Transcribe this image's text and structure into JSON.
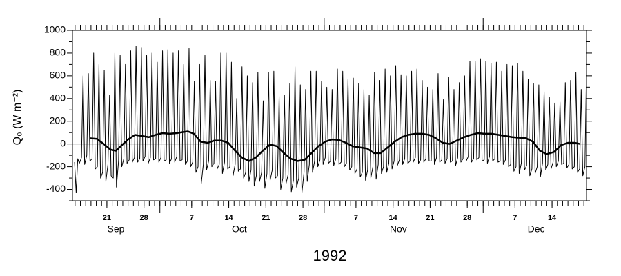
{
  "chart_data": {
    "type": "line",
    "xlabel": "1992",
    "ylabel": "Q₀ (W m⁻²)",
    "xlim": [
      258.5,
      355.5
    ],
    "ylim": [
      -500,
      1000
    ],
    "yticks": [
      -400,
      -200,
      0,
      200,
      400,
      600,
      800,
      1000
    ],
    "yminor_ticks": [
      -500,
      -300,
      -100,
      100,
      300,
      500,
      700,
      900
    ],
    "xticks": [
      {
        "value": 265,
        "label": "21"
      },
      {
        "value": 272,
        "label": "28"
      },
      {
        "value": 281,
        "label": "7"
      },
      {
        "value": 288,
        "label": "14"
      },
      {
        "value": 295,
        "label": "21"
      },
      {
        "value": 302,
        "label": "28"
      },
      {
        "value": 312,
        "label": "7"
      },
      {
        "value": 319,
        "label": "14"
      },
      {
        "value": 326,
        "label": "21"
      },
      {
        "value": 333,
        "label": "28"
      },
      {
        "value": 342,
        "label": "7"
      },
      {
        "value": 349,
        "label": "14"
      }
    ],
    "xminor_step": 1,
    "xmajor_ticks": [
      275,
      306,
      336
    ],
    "month_labels": [
      {
        "value": 266.7,
        "label": "Sep"
      },
      {
        "value": 290,
        "label": "Oct"
      },
      {
        "value": 320,
        "label": "Nov"
      },
      {
        "value": 346,
        "label": "Dec"
      }
    ],
    "hline": 0,
    "series": [
      {
        "color": "#000000",
        "width": 1,
        "x": [
          258.9,
          259.2,
          259.5,
          259.8,
          260.2,
          260.5,
          260.8,
          261.2,
          261.5,
          261.8,
          262.2,
          262.5,
          262.8,
          263.2,
          263.5,
          263.8,
          264.2,
          264.5,
          264.8,
          265.2,
          265.5,
          265.8,
          266.2,
          266.5,
          266.8,
          267.2,
          267.5,
          267.8,
          268.2,
          268.5,
          268.8,
          269.2,
          269.5,
          269.8,
          270.2,
          270.5,
          270.8,
          271.2,
          271.5,
          271.8,
          272.2,
          272.5,
          272.8,
          273.2,
          273.5,
          273.8,
          274.2,
          274.5,
          274.8,
          275.2,
          275.5,
          275.8,
          276.2,
          276.5,
          276.8,
          277.2,
          277.5,
          277.8,
          278.2,
          278.5,
          278.8,
          279.2,
          279.5,
          279.8,
          280.2,
          280.5,
          280.8,
          281.2,
          281.5,
          281.8,
          282.2,
          282.5,
          282.8,
          283.2,
          283.5,
          283.8,
          284.2,
          284.5,
          284.8,
          285.2,
          285.5,
          285.8,
          286.2,
          286.5,
          286.8,
          287.2,
          287.5,
          287.8,
          288.2,
          288.5,
          288.8,
          289.2,
          289.5,
          289.8,
          290.2,
          290.5,
          290.8,
          291.2,
          291.5,
          291.8,
          292.2,
          292.5,
          292.8,
          293.2,
          293.5,
          293.8,
          294.2,
          294.5,
          294.8,
          295.2,
          295.5,
          295.8,
          296.2,
          296.5,
          296.8,
          297.2,
          297.5,
          297.8,
          298.2,
          298.5,
          298.8,
          299.2,
          299.5,
          299.8,
          300.2,
          300.5,
          300.8,
          301.2,
          301.5,
          301.8,
          302.2,
          302.5,
          302.8,
          303.2,
          303.5,
          303.8,
          304.2,
          304.5,
          304.8,
          305.2,
          305.5,
          305.8,
          306.2,
          306.5,
          306.8,
          307.2,
          307.5,
          307.8,
          308.2,
          308.5,
          308.8,
          309.2,
          309.5,
          309.8,
          310.2,
          310.5,
          310.8,
          311.2,
          311.5,
          311.8,
          312.2,
          312.5,
          312.8,
          313.2,
          313.5,
          313.8,
          314.2,
          314.5,
          314.8,
          315.2,
          315.5,
          315.8,
          316.2,
          316.5,
          316.8,
          317.2,
          317.5,
          317.8,
          318.2,
          318.5,
          318.8,
          319.2,
          319.5,
          319.8,
          320.2,
          320.5,
          320.8,
          321.2,
          321.5,
          321.8,
          322.2,
          322.5,
          322.8,
          323.2,
          323.5,
          323.8,
          324.2,
          324.5,
          324.8,
          325.2,
          325.5,
          325.8,
          326.2,
          326.5,
          326.8,
          327.2,
          327.5,
          327.8,
          328.2,
          328.5,
          328.8,
          329.2,
          329.5,
          329.8,
          330.2,
          330.5,
          330.8,
          331.2,
          331.5,
          331.8,
          332.2,
          332.5,
          332.8,
          333.2,
          333.5,
          333.8,
          334.2,
          334.5,
          334.8,
          335.2,
          335.5,
          335.8,
          336.2,
          336.5,
          336.8,
          337.2,
          337.5,
          337.8,
          338.2,
          338.5,
          338.8,
          339.2,
          339.5,
          339.8,
          340.2,
          340.5,
          340.8,
          341.2,
          341.5,
          341.8,
          342.2,
          342.5,
          342.8,
          343.2,
          343.5,
          343.8,
          344.2,
          344.5,
          344.8,
          345.2,
          345.5,
          345.8,
          346.2,
          346.5,
          346.8,
          347.2,
          347.5,
          347.8,
          348.2,
          348.5,
          348.8,
          349.2,
          349.5,
          349.8,
          350.2,
          350.5,
          350.8,
          351.2,
          351.5,
          351.8,
          352.2,
          352.5,
          352.8,
          353.2,
          353.5,
          353.8,
          354.2,
          354.5,
          354.8,
          355.2,
          355.5,
          355.8
        ],
        "values": [
          -160,
          -430,
          -130,
          -170,
          -120,
          600,
          -180,
          -100,
          620,
          -150,
          -130,
          800,
          -220,
          -200,
          700,
          -300,
          -250,
          650,
          -330,
          -180,
          430,
          -280,
          -300,
          800,
          -380,
          -150,
          780,
          -200,
          -130,
          700,
          -170,
          -140,
          820,
          -160,
          -120,
          860,
          -160,
          -130,
          850,
          -150,
          -110,
          780,
          -170,
          -120,
          800,
          -140,
          -130,
          720,
          -160,
          -120,
          820,
          -150,
          -140,
          830,
          -170,
          -130,
          800,
          -160,
          -110,
          820,
          -150,
          -140,
          700,
          -180,
          -150,
          840,
          -200,
          -160,
          550,
          -250,
          -200,
          700,
          -350,
          -180,
          780,
          -230,
          -150,
          560,
          -200,
          -170,
          550,
          -220,
          -180,
          800,
          -260,
          -160,
          800,
          -220,
          -200,
          720,
          -280,
          -180,
          400,
          -240,
          -220,
          680,
          -300,
          -250,
          600,
          -330,
          -230,
          540,
          -370,
          -280,
          630,
          -330,
          -250,
          380,
          -390,
          -260,
          630,
          -320,
          -230,
          640,
          -300,
          -280,
          420,
          -400,
          -300,
          430,
          -350,
          -270,
          530,
          -420,
          -320,
          680,
          -380,
          -300,
          520,
          -430,
          -250,
          480,
          -330,
          -180,
          640,
          -250,
          -150,
          640,
          -200,
          -140,
          550,
          -180,
          -120,
          500,
          -170,
          -150,
          480,
          -190,
          -130,
          660,
          -180,
          -160,
          640,
          -200,
          -170,
          570,
          -230,
          -200,
          580,
          -260,
          -220,
          530,
          -290,
          -250,
          480,
          -320,
          -230,
          430,
          -300,
          -200,
          630,
          -310,
          -180,
          560,
          -260,
          -200,
          660,
          -250,
          -170,
          600,
          -220,
          -150,
          690,
          -190,
          -140,
          610,
          -180,
          -130,
          600,
          -170,
          -150,
          640,
          -160,
          -120,
          660,
          -170,
          -140,
          560,
          -160,
          -130,
          500,
          -150,
          -150,
          480,
          -180,
          -120,
          620,
          -160,
          -140,
          390,
          -170,
          -130,
          590,
          -160,
          -150,
          480,
          -190,
          -120,
          540,
          -160,
          -130,
          600,
          -150,
          -110,
          730,
          -160,
          -130,
          730,
          -140,
          -120,
          750,
          -150,
          -140,
          730,
          -170,
          -110,
          710,
          -150,
          -130,
          720,
          -160,
          -150,
          640,
          -180,
          -140,
          700,
          -200,
          -180,
          690,
          -240,
          -200,
          710,
          -260,
          -170,
          640,
          -230,
          -190,
          570,
          -280,
          -220,
          530,
          -260,
          -200,
          520,
          -290,
          -170,
          460,
          -230,
          -180,
          410,
          -220,
          -160,
          360,
          -200,
          -150,
          370,
          -180,
          -170,
          540,
          -210,
          -180,
          560,
          -220,
          -200,
          630,
          -250,
          -220,
          480,
          -280,
          -200,
          680,
          -300
        ]
      },
      {
        "color": "#000000",
        "width": 2.5,
        "x": [
          261.8,
          263.1,
          264.4,
          265.7,
          266.7,
          267.6,
          269.0,
          270.3,
          271.6,
          272.9,
          274.2,
          275.5,
          276.8,
          278.1,
          279.4,
          280.3,
          281.4,
          282.7,
          284.0,
          285.3,
          286.6,
          287.9,
          289.2,
          290.5,
          291.8,
          293.1,
          294.4,
          295.8,
          297.1,
          298.4,
          299.7,
          301.0,
          302.3,
          303.6,
          304.9,
          306.2,
          307.5,
          308.8,
          310.1,
          311.4,
          312.7,
          314.1,
          315.4,
          316.7,
          318.0,
          319.3,
          320.6,
          321.9,
          323.2,
          324.5,
          325.8,
          327.1,
          328.4,
          329.7,
          331.0,
          332.4,
          333.7,
          335.0,
          336.3,
          337.6,
          338.9,
          340.2,
          341.5,
          342.8,
          344.1,
          345.4,
          346.7,
          348.0,
          349.4,
          350.7,
          352.0,
          353.3,
          354.3
        ],
        "values": [
          50,
          45,
          0,
          -50,
          -60,
          -20,
          40,
          80,
          70,
          60,
          80,
          95,
          90,
          95,
          105,
          110,
          90,
          20,
          10,
          30,
          30,
          10,
          -60,
          -120,
          -150,
          -120,
          -60,
          -5,
          -20,
          -80,
          -130,
          -150,
          -140,
          -80,
          -20,
          20,
          40,
          35,
          10,
          -20,
          -30,
          -40,
          -80,
          -80,
          -30,
          20,
          60,
          80,
          90,
          90,
          80,
          50,
          10,
          0,
          30,
          60,
          80,
          95,
          90,
          90,
          80,
          70,
          60,
          55,
          50,
          20,
          -60,
          -90,
          -70,
          -10,
          10,
          10,
          0
        ]
      }
    ]
  }
}
